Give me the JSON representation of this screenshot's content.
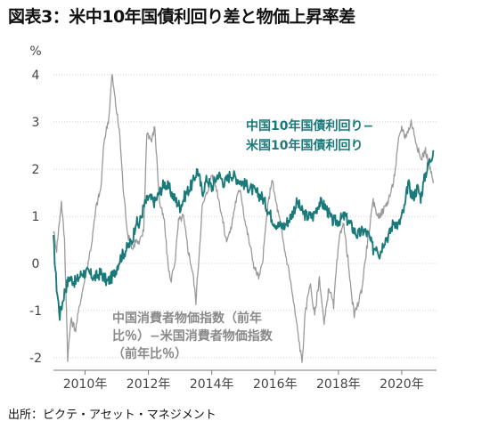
{
  "title": "図表3：米中10年国債利回り差と物価上昇率差",
  "source": "出所：ピクテ・アセット・マネジメント",
  "chart_data": {
    "type": "line",
    "y_unit": "%",
    "ylim": [
      -2,
      4
    ],
    "y_ticks": [
      "4",
      "3",
      "2",
      "1",
      "0",
      "-1",
      "-2"
    ],
    "x_range": [
      2009.0,
      2021.1
    ],
    "x_ticks": [
      {
        "year": 2010,
        "label": "2010年"
      },
      {
        "year": 2012,
        "label": "2012年"
      },
      {
        "year": 2014,
        "label": "2014年"
      },
      {
        "year": 2016,
        "label": "2016年"
      },
      {
        "year": 2018,
        "label": "2018年"
      },
      {
        "year": 2020,
        "label": "2020年"
      }
    ],
    "grid": "horizontal",
    "series": [
      {
        "name_lines": [
          "中国10年国債利回り−",
          "米国10年国債利回り"
        ],
        "color": "#1a7a7a",
        "noise": 0.13,
        "points": [
          [
            2009.0,
            0.5
          ],
          [
            2009.1,
            -0.5
          ],
          [
            2009.2,
            -1.1
          ],
          [
            2009.35,
            -0.6
          ],
          [
            2009.5,
            -0.3
          ],
          [
            2009.7,
            -0.4
          ],
          [
            2009.9,
            -0.2
          ],
          [
            2010.1,
            -0.2
          ],
          [
            2010.3,
            -0.3
          ],
          [
            2010.5,
            -0.2
          ],
          [
            2010.7,
            -0.4
          ],
          [
            2010.9,
            -0.25
          ],
          [
            2011.1,
            0.1
          ],
          [
            2011.3,
            0.3
          ],
          [
            2011.5,
            0.5
          ],
          [
            2011.6,
            0.9
          ],
          [
            2011.7,
            0.8
          ],
          [
            2011.85,
            1.2
          ],
          [
            2012.0,
            1.4
          ],
          [
            2012.2,
            1.3
          ],
          [
            2012.35,
            1.5
          ],
          [
            2012.5,
            1.7
          ],
          [
            2012.65,
            1.6
          ],
          [
            2012.8,
            1.4
          ],
          [
            2013.0,
            1.2
          ],
          [
            2013.2,
            1.5
          ],
          [
            2013.4,
            1.7
          ],
          [
            2013.55,
            2.0
          ],
          [
            2013.7,
            1.5
          ],
          [
            2013.85,
            1.8
          ],
          [
            2014.0,
            1.6
          ],
          [
            2014.2,
            1.9
          ],
          [
            2014.4,
            1.7
          ],
          [
            2014.6,
            1.9
          ],
          [
            2014.8,
            1.8
          ],
          [
            2015.0,
            1.7
          ],
          [
            2015.2,
            1.6
          ],
          [
            2015.4,
            1.5
          ],
          [
            2015.6,
            1.4
          ],
          [
            2015.8,
            1.1
          ],
          [
            2015.95,
            0.9
          ],
          [
            2016.1,
            0.8
          ],
          [
            2016.3,
            0.8
          ],
          [
            2016.5,
            1.0
          ],
          [
            2016.7,
            1.3
          ],
          [
            2016.85,
            1.1
          ],
          [
            2017.0,
            1.0
          ],
          [
            2017.2,
            1.0
          ],
          [
            2017.4,
            1.3
          ],
          [
            2017.6,
            1.2
          ],
          [
            2017.8,
            0.9
          ],
          [
            2018.0,
            0.9
          ],
          [
            2018.2,
            1.0
          ],
          [
            2018.4,
            0.8
          ],
          [
            2018.6,
            0.6
          ],
          [
            2018.8,
            0.7
          ],
          [
            2018.95,
            0.6
          ],
          [
            2019.1,
            0.3
          ],
          [
            2019.2,
            0.4
          ],
          [
            2019.3,
            0.2
          ],
          [
            2019.45,
            0.5
          ],
          [
            2019.6,
            0.6
          ],
          [
            2019.75,
            0.9
          ],
          [
            2019.9,
            0.8
          ],
          [
            2020.0,
            1.0
          ],
          [
            2020.1,
            1.2
          ],
          [
            2020.2,
            1.7
          ],
          [
            2020.35,
            1.4
          ],
          [
            2020.5,
            1.6
          ],
          [
            2020.6,
            1.4
          ],
          [
            2020.75,
            1.9
          ],
          [
            2020.9,
            2.2
          ],
          [
            2021.0,
            2.4
          ]
        ]
      },
      {
        "name_lines": [
          "中国消費者物価指数（前年",
          "比％）−米国消費者物価指数",
          "（前年比％）"
        ],
        "color": "#9a9a9a",
        "noise": 0.08,
        "points": [
          [
            2009.0,
            0.7
          ],
          [
            2009.1,
            0.3
          ],
          [
            2009.25,
            1.3
          ],
          [
            2009.35,
            0.5
          ],
          [
            2009.45,
            -2.0
          ],
          [
            2009.55,
            -1.2
          ],
          [
            2009.7,
            -1.4
          ],
          [
            2009.85,
            -0.8
          ],
          [
            2010.0,
            -0.3
          ],
          [
            2010.2,
            0.4
          ],
          [
            2010.35,
            1.2
          ],
          [
            2010.5,
            1.6
          ],
          [
            2010.6,
            2.6
          ],
          [
            2010.75,
            3.1
          ],
          [
            2010.85,
            4.0
          ],
          [
            2011.0,
            3.2
          ],
          [
            2011.1,
            2.7
          ],
          [
            2011.2,
            1.6
          ],
          [
            2011.35,
            0.6
          ],
          [
            2011.5,
            0.3
          ],
          [
            2011.6,
            0.5
          ],
          [
            2011.7,
            0.4
          ],
          [
            2011.85,
            0.7
          ],
          [
            2011.95,
            2.8
          ],
          [
            2012.1,
            2.6
          ],
          [
            2012.2,
            2.9
          ],
          [
            2012.35,
            1.3
          ],
          [
            2012.5,
            0.9
          ],
          [
            2012.6,
            0.1
          ],
          [
            2012.7,
            -0.4
          ],
          [
            2012.85,
            0.1
          ],
          [
            2012.95,
            0.9
          ],
          [
            2013.1,
            1.0
          ],
          [
            2013.25,
            0.3
          ],
          [
            2013.4,
            -0.2
          ],
          [
            2013.5,
            -0.8
          ],
          [
            2013.6,
            0.2
          ],
          [
            2013.7,
            1.2
          ],
          [
            2013.85,
            1.5
          ],
          [
            2014.0,
            1.9
          ],
          [
            2014.15,
            1.6
          ],
          [
            2014.3,
            1.1
          ],
          [
            2014.45,
            0.5
          ],
          [
            2014.6,
            0.7
          ],
          [
            2014.75,
            1.3
          ],
          [
            2014.9,
            1.6
          ],
          [
            2015.05,
            0.9
          ],
          [
            2015.2,
            0.4
          ],
          [
            2015.35,
            -0.1
          ],
          [
            2015.5,
            -0.3
          ],
          [
            2015.6,
            0.0
          ],
          [
            2015.75,
            1.1
          ],
          [
            2015.9,
            1.8
          ],
          [
            2016.0,
            1.4
          ],
          [
            2016.15,
            0.9
          ],
          [
            2016.3,
            0.3
          ],
          [
            2016.45,
            -0.2
          ],
          [
            2016.6,
            -0.9
          ],
          [
            2016.75,
            -1.6
          ],
          [
            2016.85,
            -2.1
          ],
          [
            2016.95,
            -1.1
          ],
          [
            2017.1,
            -0.4
          ],
          [
            2017.25,
            -1.1
          ],
          [
            2017.4,
            -0.3
          ],
          [
            2017.55,
            -1.3
          ],
          [
            2017.7,
            -0.5
          ],
          [
            2017.85,
            -0.9
          ],
          [
            2017.95,
            0.0
          ],
          [
            2018.05,
            0.6
          ],
          [
            2018.15,
            0.9
          ],
          [
            2018.3,
            0.1
          ],
          [
            2018.4,
            -0.6
          ],
          [
            2018.5,
            -1.1
          ],
          [
            2018.6,
            -0.9
          ],
          [
            2018.75,
            -0.5
          ],
          [
            2018.85,
            0.1
          ],
          [
            2018.95,
            0.6
          ],
          [
            2019.1,
            1.3
          ],
          [
            2019.25,
            1.0
          ],
          [
            2019.4,
            1.1
          ],
          [
            2019.55,
            1.3
          ],
          [
            2019.7,
            1.6
          ],
          [
            2019.8,
            2.0
          ],
          [
            2019.9,
            2.6
          ],
          [
            2020.0,
            2.9
          ],
          [
            2020.1,
            2.7
          ],
          [
            2020.2,
            2.8
          ],
          [
            2020.3,
            3.0
          ],
          [
            2020.45,
            2.6
          ],
          [
            2020.6,
            2.2
          ],
          [
            2020.75,
            2.4
          ],
          [
            2020.9,
            2.0
          ],
          [
            2021.0,
            1.7
          ]
        ]
      }
    ]
  }
}
